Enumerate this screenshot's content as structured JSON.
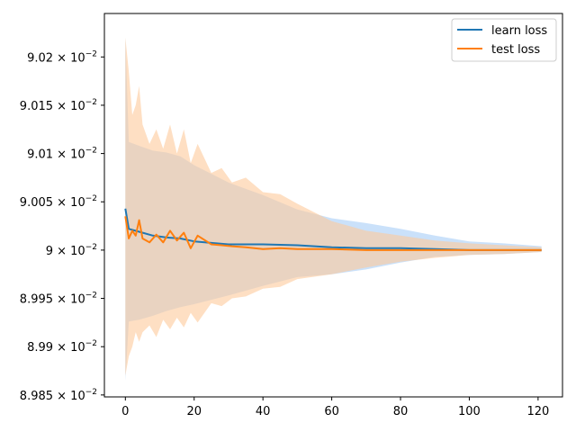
{
  "chart_data": {
    "type": "line",
    "title": "",
    "xlabel": "",
    "ylabel": "",
    "xlim": [
      -6.1,
      127.1
    ],
    "ylim": [
      0.089848,
      0.090245
    ],
    "grid": false,
    "legend": {
      "placement": "top-right"
    },
    "x_ticks": [
      0,
      20,
      40,
      60,
      80,
      100,
      120
    ],
    "y_ticks": [
      {
        "value": 0.08985,
        "mantissa": "8.985"
      },
      {
        "value": 0.0899,
        "mantissa": "8.99"
      },
      {
        "value": 0.08995,
        "mantissa": "8.995"
      },
      {
        "value": 0.09,
        "mantissa": "9"
      },
      {
        "value": 0.09005,
        "mantissa": "9.005"
      },
      {
        "value": 0.0901,
        "mantissa": "9.01"
      },
      {
        "value": 0.09015,
        "mantissa": "9.015"
      },
      {
        "value": 0.0902,
        "mantissa": "9.02"
      }
    ],
    "y_tick_exponent_label": "× 10",
    "y_tick_exponent": "−2",
    "series": [
      {
        "name": "learn loss",
        "color": "#1f77b4",
        "band_color": "#9ec8f5",
        "points": [
          [
            0,
            0.090043
          ],
          [
            1,
            0.090022
          ],
          [
            4,
            0.090019
          ],
          [
            8,
            0.090015
          ],
          [
            12,
            0.090013
          ],
          [
            16,
            0.090012
          ],
          [
            20,
            0.090009
          ],
          [
            30,
            0.090006
          ],
          [
            40,
            0.090006
          ],
          [
            50,
            0.090005
          ],
          [
            60,
            0.090003
          ],
          [
            70,
            0.090002
          ],
          [
            80,
            0.090002
          ],
          [
            90,
            0.090001
          ],
          [
            100,
            0.09
          ],
          [
            110,
            0.09
          ],
          [
            121,
            0.09
          ]
        ],
        "band_upper": [
          [
            0,
            0.09022
          ],
          [
            1,
            0.090112
          ],
          [
            4,
            0.090108
          ],
          [
            8,
            0.090103
          ],
          [
            12,
            0.090101
          ],
          [
            16,
            0.090097
          ],
          [
            20,
            0.090088
          ],
          [
            30,
            0.09007
          ],
          [
            40,
            0.090057
          ],
          [
            50,
            0.090042
          ],
          [
            60,
            0.090033
          ],
          [
            70,
            0.090028
          ],
          [
            80,
            0.090022
          ],
          [
            90,
            0.090015
          ],
          [
            100,
            0.090009
          ],
          [
            110,
            0.090007
          ],
          [
            121,
            0.090004
          ]
        ],
        "band_lower": [
          [
            0,
            0.089865
          ],
          [
            1,
            0.089926
          ],
          [
            4,
            0.089928
          ],
          [
            8,
            0.089932
          ],
          [
            12,
            0.089937
          ],
          [
            16,
            0.089941
          ],
          [
            20,
            0.089944
          ],
          [
            30,
            0.089953
          ],
          [
            40,
            0.089963
          ],
          [
            50,
            0.089972
          ],
          [
            60,
            0.089975
          ],
          [
            70,
            0.08998
          ],
          [
            80,
            0.089987
          ],
          [
            90,
            0.089993
          ],
          [
            100,
            0.089995
          ],
          [
            110,
            0.089996
          ],
          [
            121,
            0.089998
          ]
        ]
      },
      {
        "name": "test loss",
        "color": "#ff7f0e",
        "band_color": "#fdc99b",
        "points": [
          [
            0,
            0.090035
          ],
          [
            1,
            0.090012
          ],
          [
            2,
            0.09002
          ],
          [
            3,
            0.090015
          ],
          [
            4,
            0.090031
          ],
          [
            5,
            0.090012
          ],
          [
            7,
            0.090008
          ],
          [
            9,
            0.090016
          ],
          [
            11,
            0.090008
          ],
          [
            13,
            0.09002
          ],
          [
            15,
            0.09001
          ],
          [
            17,
            0.090018
          ],
          [
            19,
            0.090002
          ],
          [
            21,
            0.090015
          ],
          [
            25,
            0.090006
          ],
          [
            28,
            0.090005
          ],
          [
            31,
            0.090004
          ],
          [
            35,
            0.090003
          ],
          [
            40,
            0.090001
          ],
          [
            45,
            0.090002
          ],
          [
            50,
            0.090001
          ],
          [
            60,
            0.090001
          ],
          [
            70,
            0.09
          ],
          [
            80,
            0.09
          ],
          [
            90,
            0.09
          ],
          [
            100,
            0.09
          ],
          [
            110,
            0.09
          ],
          [
            121,
            0.09
          ]
        ],
        "band_upper": [
          [
            0,
            0.09022
          ],
          [
            1,
            0.090185
          ],
          [
            2,
            0.09014
          ],
          [
            3,
            0.09015
          ],
          [
            4,
            0.09017
          ],
          [
            5,
            0.09013
          ],
          [
            7,
            0.09011
          ],
          [
            9,
            0.090125
          ],
          [
            11,
            0.090105
          ],
          [
            13,
            0.09013
          ],
          [
            15,
            0.0901
          ],
          [
            17,
            0.090125
          ],
          [
            19,
            0.09009
          ],
          [
            21,
            0.09011
          ],
          [
            25,
            0.09008
          ],
          [
            28,
            0.090085
          ],
          [
            31,
            0.09007
          ],
          [
            35,
            0.090075
          ],
          [
            40,
            0.09006
          ],
          [
            45,
            0.090058
          ],
          [
            50,
            0.090048
          ],
          [
            60,
            0.09003
          ],
          [
            70,
            0.09002
          ],
          [
            80,
            0.090015
          ],
          [
            90,
            0.09001
          ],
          [
            100,
            0.090007
          ],
          [
            110,
            0.090005
          ],
          [
            121,
            0.090003
          ]
        ],
        "band_lower": [
          [
            0,
            0.08987
          ],
          [
            1,
            0.08989
          ],
          [
            2,
            0.0899
          ],
          [
            3,
            0.089915
          ],
          [
            4,
            0.089905
          ],
          [
            5,
            0.089915
          ],
          [
            7,
            0.089922
          ],
          [
            9,
            0.08991
          ],
          [
            11,
            0.089928
          ],
          [
            13,
            0.089918
          ],
          [
            15,
            0.08993
          ],
          [
            17,
            0.08992
          ],
          [
            19,
            0.089935
          ],
          [
            21,
            0.089925
          ],
          [
            25,
            0.089945
          ],
          [
            28,
            0.089942
          ],
          [
            31,
            0.08995
          ],
          [
            35,
            0.089952
          ],
          [
            40,
            0.08996
          ],
          [
            45,
            0.089962
          ],
          [
            50,
            0.08997
          ],
          [
            60,
            0.089975
          ],
          [
            70,
            0.089982
          ],
          [
            80,
            0.089988
          ],
          [
            90,
            0.089992
          ],
          [
            100,
            0.089995
          ],
          [
            110,
            0.089996
          ],
          [
            121,
            0.089998
          ]
        ]
      }
    ]
  }
}
